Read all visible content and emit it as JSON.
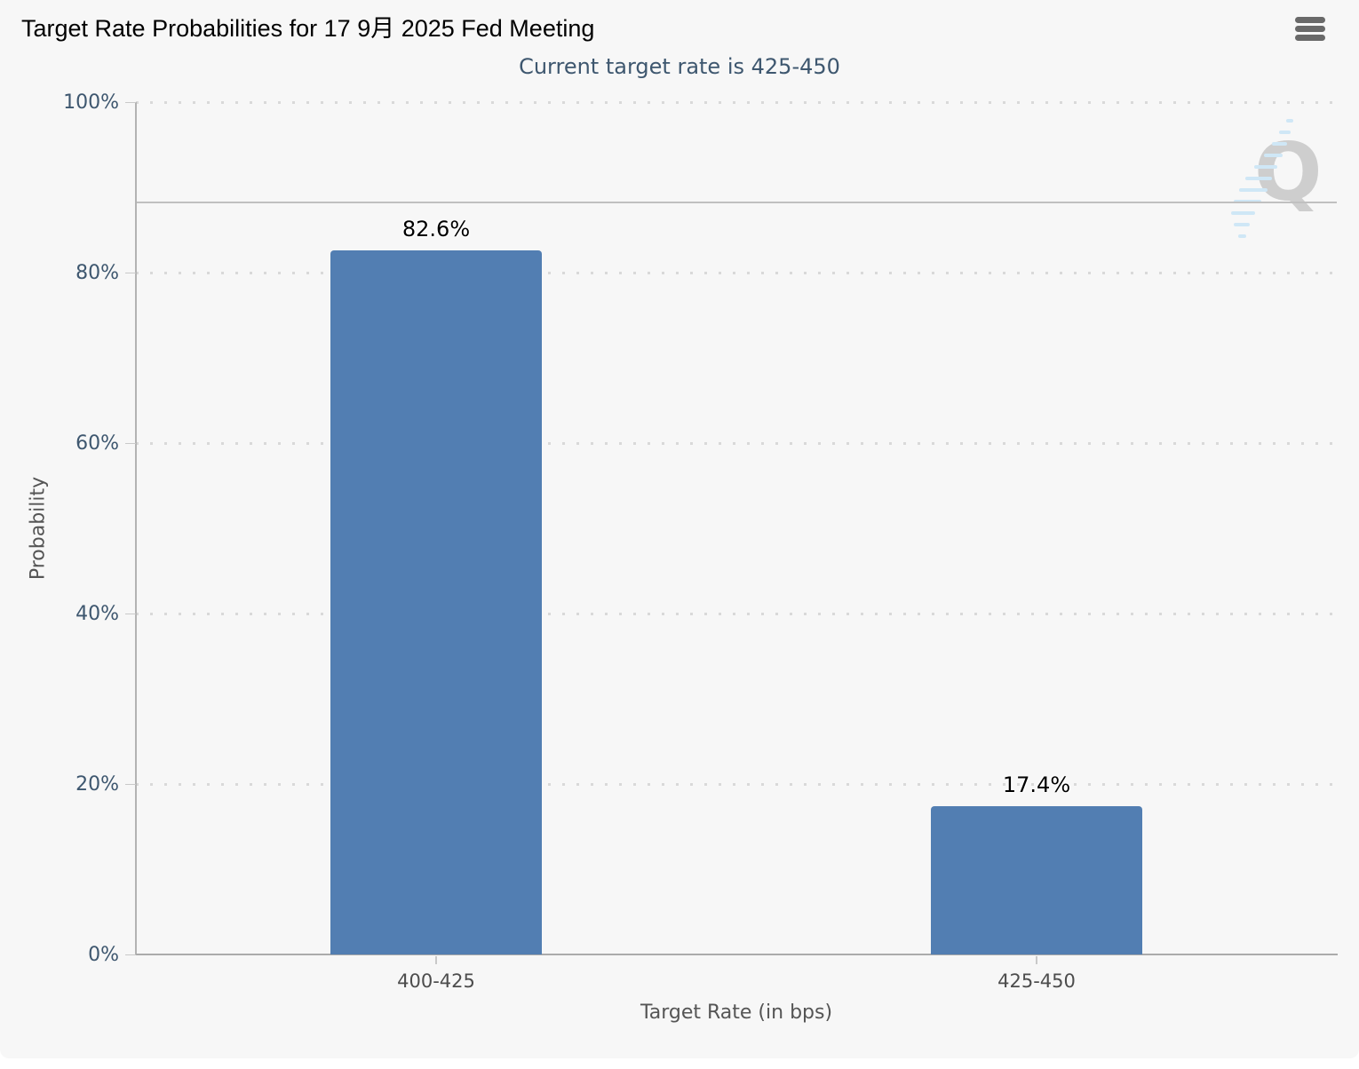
{
  "page": {
    "background": "#ffffff",
    "panel_background": "#f7f7f7"
  },
  "header": {
    "menu_icon": "hamburger-menu"
  },
  "watermark": {
    "letter": "Q"
  },
  "chart_data": {
    "type": "bar",
    "title": "Target Rate Probabilities for 17 9月 2025 Fed Meeting",
    "subtitle": "Current target rate is 425-450",
    "categories": [
      "400-425",
      "425-450"
    ],
    "values": [
      82.6,
      17.4
    ],
    "data_labels": [
      "82.6%",
      "17.4%"
    ],
    "xlabel": "Target Rate (in bps)",
    "ylabel": "Probability",
    "ylim": [
      0,
      100
    ],
    "ytick_interval": 20,
    "ytick_labels": [
      "0%",
      "20%",
      "40%",
      "60%",
      "80%",
      "100%"
    ],
    "grid": "dotted-horizontal",
    "legend": "none",
    "plotline_value": 88.2,
    "colors": {
      "bar": "#527EB2",
      "title": "#000000",
      "subtitle": "#3E576F",
      "ytick_label": "#3E576F",
      "xtick_label": "#4d4d4d",
      "axis_title": "#555555",
      "axis_line": "#b0b0b0",
      "gridline": "#d9d9d9",
      "plotline": "#c0c0c0",
      "menu_icon": "#696969",
      "watermark_q": "#adadad",
      "watermark_swoosh": "#cfe7f6"
    }
  }
}
